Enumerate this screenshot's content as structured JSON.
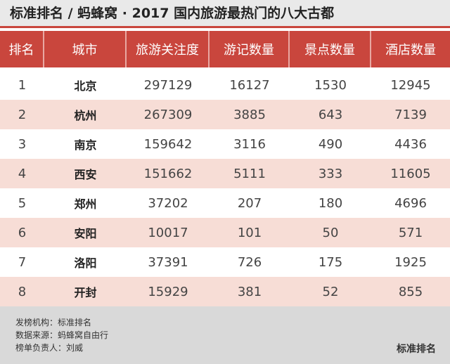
{
  "header": {
    "title": "标准排名 / 蚂蜂窝 · 2017 国内旅游最热门的八大古都"
  },
  "table": {
    "columns": [
      "排名",
      "城市",
      "旅游关注度",
      "游记数量",
      "景点数量",
      "酒店数量"
    ],
    "rows": [
      [
        1,
        "北京",
        297129,
        16127,
        1530,
        12945
      ],
      [
        2,
        "杭州",
        267309,
        3885,
        643,
        7139
      ],
      [
        3,
        "南京",
        159642,
        3116,
        490,
        4436
      ],
      [
        4,
        "西安",
        151662,
        5111,
        333,
        11605
      ],
      [
        5,
        "郑州",
        37202,
        207,
        180,
        4696
      ],
      [
        6,
        "安阳",
        10017,
        101,
        50,
        571
      ],
      [
        7,
        "洛阳",
        37391,
        726,
        175,
        1925
      ],
      [
        8,
        "开封",
        15929,
        381,
        52,
        855
      ]
    ]
  },
  "footer": {
    "lines": [
      "发榜机构：标准排名",
      "数据来源：蚂蜂窝自由行",
      "榜单负责人：刘威"
    ],
    "logo": "标准排名"
  }
}
